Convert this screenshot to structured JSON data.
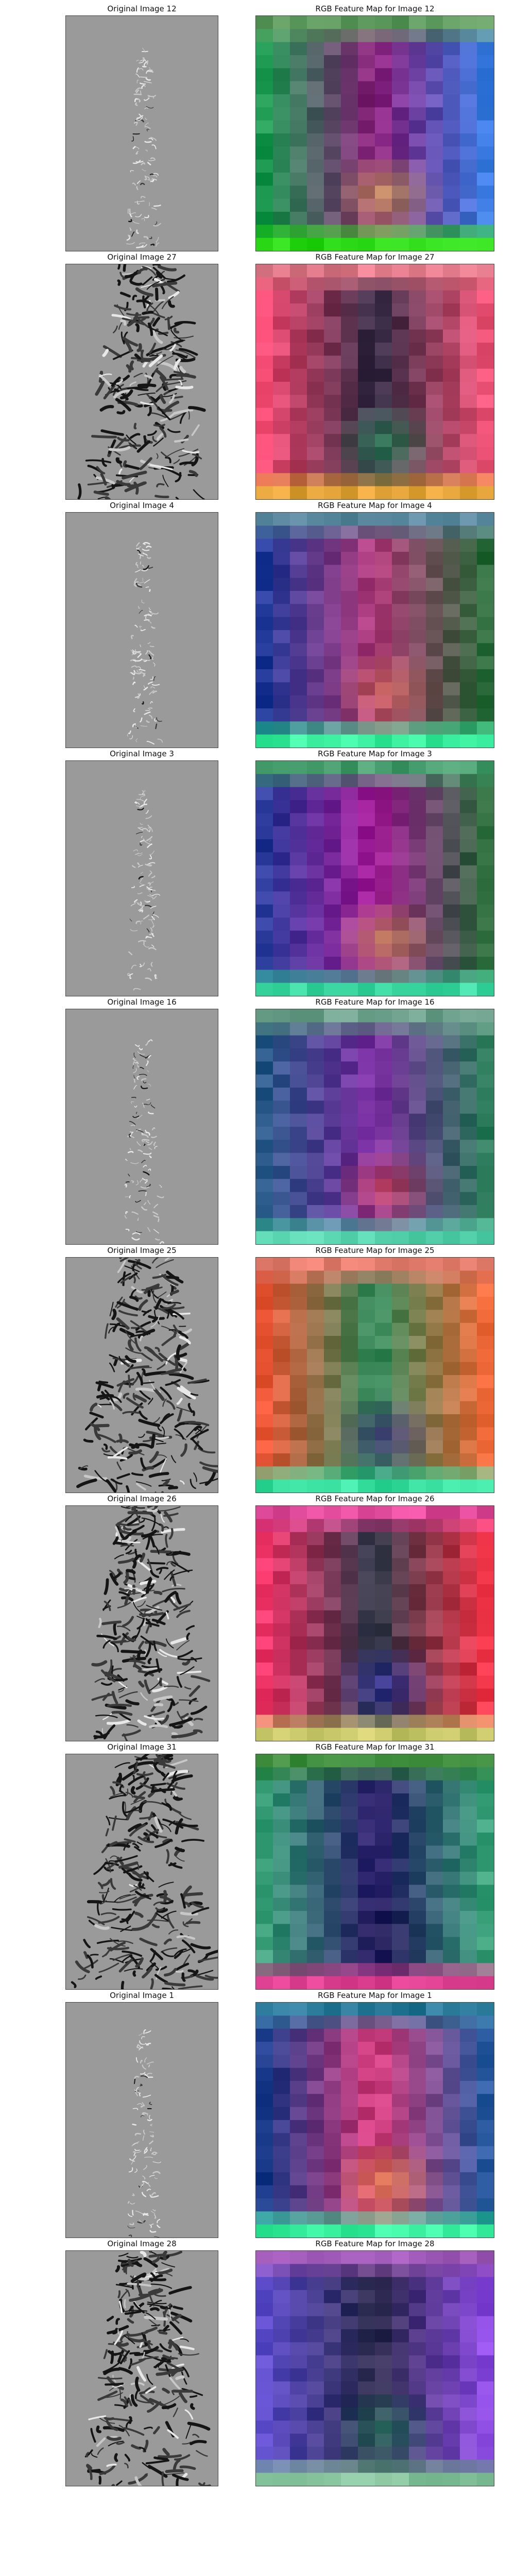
{
  "figure": {
    "rows": [
      {
        "left_title": "Original Image 12",
        "right_title": "RGB Feature Map for Image 12",
        "texture": "smooth",
        "dark": 0.1,
        "plume_width": 0.3,
        "map_top": "#5e9a5e",
        "map_bottom": "#2fdc1a",
        "map_accent": "#e0cf3a",
        "map_left": "#1e9a52",
        "map_center": "#8a1d7a",
        "map_right": "#3a7ae0"
      },
      {
        "left_title": "Original Image 27",
        "right_title": "RGB Feature Map for Image 27",
        "texture": "turbulent",
        "dark": 0.85,
        "plume_width": 0.85,
        "map_top": "#e07a8a",
        "map_bottom": "#e2a338",
        "map_accent": "#1ea85e",
        "map_left": "#f24a72",
        "map_center": "#2e2a44",
        "map_right": "#f0567a"
      },
      {
        "left_title": "Original Image 4",
        "right_title": "RGB Feature Map for Image 4",
        "texture": "smooth",
        "dark": 0.12,
        "plume_width": 0.3,
        "map_top": "#5c8aa0",
        "map_bottom": "#3cf0a0",
        "map_accent": "#d67a4a",
        "map_left": "#223a9a",
        "map_center": "#b23a7a",
        "map_right": "#2a6a3a"
      },
      {
        "left_title": "Original Image 3",
        "right_title": "RGB Feature Map for Image 3",
        "texture": "smooth",
        "dark": 0.1,
        "plume_width": 0.3,
        "map_top": "#4aa070",
        "map_bottom": "#3ad6a0",
        "map_accent": "#e6c640",
        "map_left": "#2a3a9a",
        "map_center": "#a81c9a",
        "map_right": "#2a6a3a"
      },
      {
        "left_title": "Original Image 16",
        "right_title": "RGB Feature Map for Image 16",
        "texture": "smooth",
        "dark": 0.22,
        "plume_width": 0.4,
        "map_top": "#6a9e8a",
        "map_bottom": "#5ad6b0",
        "map_accent": "#f2503a",
        "map_left": "#2a5a8a",
        "map_center": "#7a2aa0",
        "map_right": "#2a7a5a"
      },
      {
        "left_title": "Original Image 25",
        "right_title": "RGB Feature Map for Image 25",
        "texture": "turbulent",
        "dark": 0.9,
        "plume_width": 0.9,
        "map_top": "#e07a6a",
        "map_bottom": "#3ae0a0",
        "map_accent": "#5a1a9a",
        "map_left": "#f05a3a",
        "map_center": "#2a8a5a",
        "map_right": "#f06a3a"
      },
      {
        "left_title": "Original Image 26",
        "right_title": "RGB Feature Map for Image 26",
        "texture": "turbulent",
        "dark": 0.85,
        "plume_width": 0.85,
        "map_top": "#e04a9a",
        "map_bottom": "#c8c86a",
        "map_accent": "#2a2ab8",
        "map_left": "#f2366a",
        "map_center": "#2a3a4a",
        "map_right": "#f2364a"
      },
      {
        "left_title": "Original Image 31",
        "right_title": "RGB Feature Map for Image 31",
        "texture": "turbulent",
        "dark": 0.95,
        "plume_width": 0.95,
        "map_top": "#3a8a3a",
        "map_bottom": "#d63a8a",
        "map_accent": "#1a1a4a",
        "map_left": "#3aa07a",
        "map_center": "#2a1a6a",
        "map_right": "#3aa07a"
      },
      {
        "left_title": "Original Image 1",
        "right_title": "RGB Feature Map for Image 1",
        "texture": "smooth",
        "dark": 0.08,
        "plume_width": 0.3,
        "map_top": "#2a7a9a",
        "map_bottom": "#3af0a0",
        "map_accent": "#f0a43a",
        "map_left": "#1a3a8a",
        "map_center": "#d63a7a",
        "map_right": "#2a5aa0"
      },
      {
        "left_title": "Original Image 28",
        "right_title": "RGB Feature Map for Image 28",
        "texture": "turbulent",
        "dark": 0.85,
        "plume_width": 0.85,
        "map_top": "#a05ab8",
        "map_bottom": "#8ac6a0",
        "map_accent": "#1a8a5a",
        "map_left": "#5a4ac8",
        "map_center": "#2a2a4a",
        "map_right": "#8a4ae0"
      }
    ]
  }
}
